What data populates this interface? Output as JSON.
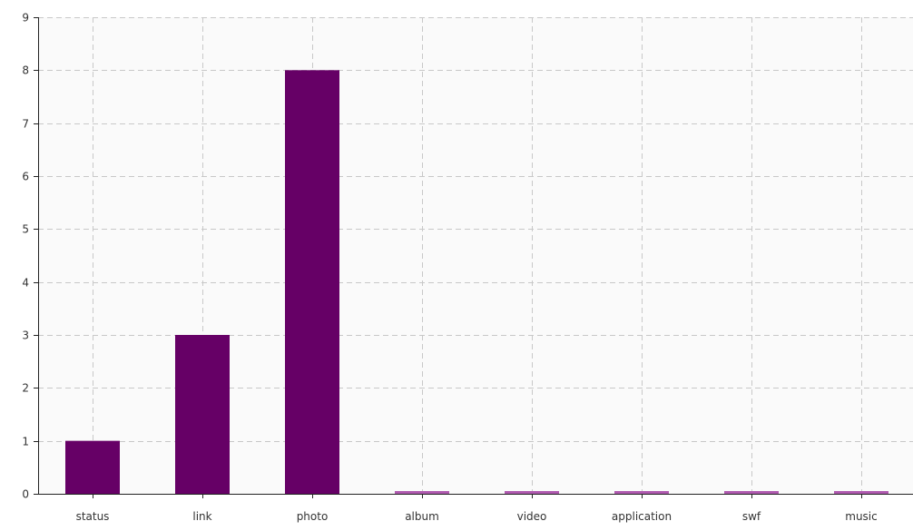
{
  "chart_data": {
    "type": "bar",
    "categories": [
      "status",
      "link",
      "photo",
      "album",
      "video",
      "application",
      "swf",
      "music"
    ],
    "values": [
      1,
      3,
      8,
      0,
      0,
      0,
      0,
      0
    ],
    "ylim": [
      0,
      9
    ],
    "y_ticks": [
      0,
      1,
      2,
      3,
      4,
      5,
      6,
      7,
      8,
      9
    ],
    "grid": true,
    "grid_style": "dashed",
    "title": "",
    "xlabel": "",
    "ylabel": ""
  },
  "colors": {
    "bar": "#660066",
    "zero_bar": "#b05ab0",
    "plot_background": "#fafafa",
    "grid": "#c8c8c8",
    "axis": "#222222"
  }
}
